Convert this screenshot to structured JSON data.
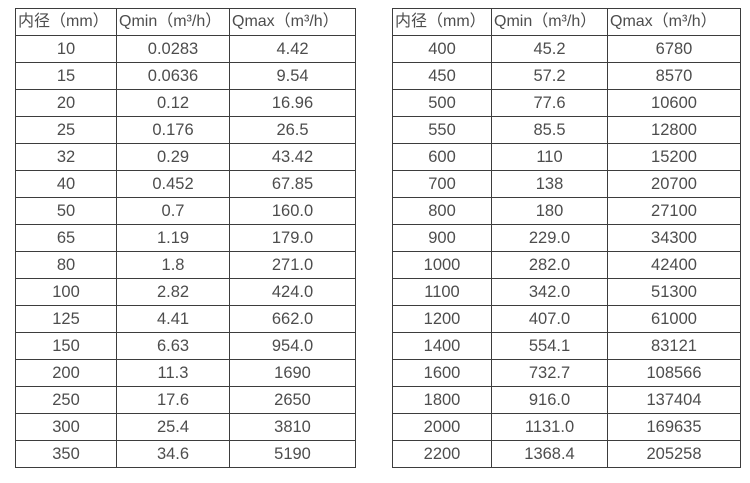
{
  "colors": {
    "background": "#ffffff",
    "border": "#3d3d3d",
    "text": "#4d4d4d"
  },
  "chart_data": [
    {
      "type": "table",
      "title": "",
      "columns": [
        "内径（mm）",
        "Qmin（m³/h）",
        "Qmax（m³/h）"
      ],
      "rows": [
        [
          "10",
          "0.0283",
          "4.42"
        ],
        [
          "15",
          "0.0636",
          "9.54"
        ],
        [
          "20",
          "0.12",
          "16.96"
        ],
        [
          "25",
          "0.176",
          "26.5"
        ],
        [
          "32",
          "0.29",
          "43.42"
        ],
        [
          "40",
          "0.452",
          "67.85"
        ],
        [
          "50",
          "0.7",
          "160.0"
        ],
        [
          "65",
          "1.19",
          "179.0"
        ],
        [
          "80",
          "1.8",
          "271.0"
        ],
        [
          "100",
          "2.82",
          "424.0"
        ],
        [
          "125",
          "4.41",
          "662.0"
        ],
        [
          "150",
          "6.63",
          "954.0"
        ],
        [
          "200",
          "11.3",
          "1690"
        ],
        [
          "250",
          "17.6",
          "2650"
        ],
        [
          "300",
          "25.4",
          "3810"
        ],
        [
          "350",
          "34.6",
          "5190"
        ]
      ]
    },
    {
      "type": "table",
      "title": "",
      "columns": [
        "内径（mm）",
        "Qmin（m³/h）",
        "Qmax（m³/h）"
      ],
      "rows": [
        [
          "400",
          "45.2",
          "6780"
        ],
        [
          "450",
          "57.2",
          "8570"
        ],
        [
          "500",
          "77.6",
          "10600"
        ],
        [
          "550",
          "85.5",
          "12800"
        ],
        [
          "600",
          "110",
          "15200"
        ],
        [
          "700",
          "138",
          "20700"
        ],
        [
          "800",
          "180",
          "27100"
        ],
        [
          "900",
          "229.0",
          "34300"
        ],
        [
          "1000",
          "282.0",
          "42400"
        ],
        [
          "1100",
          "342.0",
          "51300"
        ],
        [
          "1200",
          "407.0",
          "61000"
        ],
        [
          "1400",
          "554.1",
          "83121"
        ],
        [
          "1600",
          "732.7",
          "108566"
        ],
        [
          "1800",
          "916.0",
          "137404"
        ],
        [
          "2000",
          "1131.0",
          "169635"
        ],
        [
          "2200",
          "1368.4",
          "205258"
        ]
      ]
    }
  ]
}
